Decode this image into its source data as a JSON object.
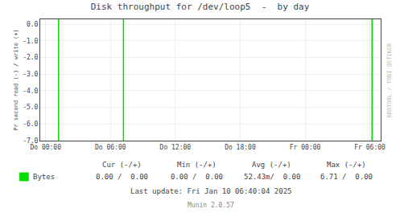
{
  "chart_data": {
    "type": "vline",
    "title": "Disk throughput for /dev/loop5  -  by day",
    "ylabel": "Pr second read (-) / write (+)",
    "series": [
      {
        "name": "Bytes",
        "type": "vline",
        "color": "#00DD00",
        "x": [
          1.2,
          7.2,
          30.2
        ]
      }
    ],
    "xlim": [
      -0.5,
      31
    ],
    "xticks": [
      {
        "value": 0,
        "label": "Do 00:00"
      },
      {
        "value": 6,
        "label": "Do 06:00"
      },
      {
        "value": 12,
        "label": "Do 12:00"
      },
      {
        "value": 18,
        "label": "Do 18:00"
      },
      {
        "value": 24,
        "label": "Fr 00:00"
      },
      {
        "value": 30,
        "label": "Fr 06:00"
      }
    ],
    "ylim": [
      -7.0,
      0.3
    ],
    "yticks": [
      {
        "value": 0.0,
        "label": "0.0"
      },
      {
        "value": -1.0,
        "label": "-1.0"
      },
      {
        "value": -2.0,
        "label": "-2.0"
      },
      {
        "value": -3.0,
        "label": "-3.0"
      },
      {
        "value": -4.0,
        "label": "-4.0"
      },
      {
        "value": -5.0,
        "label": "-5.0"
      },
      {
        "value": -6.0,
        "label": "-6.0"
      },
      {
        "value": -7.0,
        "label": "-7.0"
      }
    ],
    "grid": true,
    "annotations": [
      "RRDTOOL / TOBI OETIKER",
      "Cur (-/+)",
      "Min (-/+)",
      "Avg (-/+)",
      "Max (-/+)",
      "0.00 /  0.00",
      "0.00 /  0.00",
      "52.43m/  0.00",
      "6.71 /  0.00",
      "Last update: Fri Jan 10 06:40:04 2025",
      "Munin 2.0.57"
    ]
  }
}
